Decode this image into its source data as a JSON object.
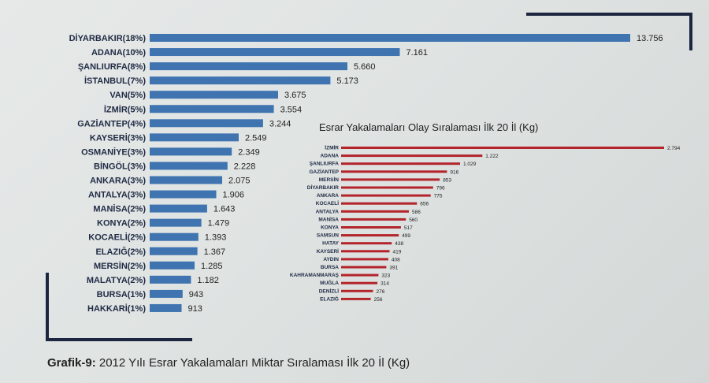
{
  "caption": {
    "prefix": "Grafik-9:",
    "text": "2012 Yılı Esrar Yakalamaları Miktar Sıralaması İlk 20 İl (Kg)"
  },
  "chart_data": [
    {
      "type": "bar",
      "orientation": "horizontal",
      "title": "",
      "bar_color": "#3f74b0",
      "categories": [
        "DİYARBAKIR(18%)",
        "ADANA(10%)",
        "ŞANLIURFA(8%)",
        "İSTANBUL(7%)",
        "VAN(5%)",
        "İZMİR(5%)",
        "GAZİANTEP(4%)",
        "KAYSERİ(3%)",
        "OSMANİYE(3%)",
        "BİNGÖL(3%)",
        "ANKARA(3%)",
        "ANTALYA(3%)",
        "MANİSA(2%)",
        "KONYA(2%)",
        "KOCAELİ(2%)",
        "ELAZIĞ(2%)",
        "MERSİN(2%)",
        "MALATYA(2%)",
        "BURSA(1%)",
        "HAKKARİ(1%)"
      ],
      "values": [
        13756,
        7161,
        5660,
        5173,
        3675,
        3554,
        3244,
        2549,
        2349,
        2228,
        2075,
        1906,
        1643,
        1479,
        1393,
        1367,
        1285,
        1182,
        943,
        913
      ],
      "value_labels": [
        "13.756",
        "7.161",
        "5.660",
        "5.173",
        "3.675",
        "3.554",
        "3.244",
        "2.549",
        "2.349",
        "2.228",
        "2.075",
        "1.906",
        "1.643",
        "1.479",
        "1.393",
        "1.367",
        "1.285",
        "1.182",
        "943",
        "913"
      ]
    },
    {
      "type": "bar",
      "orientation": "horizontal",
      "title": "Esrar Yakalamaları Olay Sıralaması İlk 20 İl (Kg)",
      "bar_color": "#b3242b",
      "categories": [
        "İZMİR",
        "ADANA",
        "ŞANLIURFA",
        "GAZİANTEP",
        "MERSİN",
        "DİYARBAKIR",
        "ANKARA",
        "KOCAELİ",
        "ANTALYA",
        "MANİSA",
        "KONYA",
        "SAMSUN",
        "HATAY",
        "KAYSERİ",
        "AYDIN",
        "BURSA",
        "KAHRAMANMARAŞ",
        "MUĞLA",
        "DENİZLİ",
        "ELAZIĞ"
      ],
      "values": [
        2794,
        1222,
        1029,
        916,
        853,
        796,
        775,
        656,
        586,
        560,
        517,
        499,
        438,
        419,
        408,
        391,
        323,
        314,
        276,
        256
      ],
      "value_labels": [
        "2.794",
        "1.222",
        "1.029",
        "916",
        "853",
        "796",
        "775",
        "656",
        "586",
        "560",
        "517",
        "499",
        "438",
        "419",
        "408",
        "391",
        "323",
        "314",
        "276",
        "256"
      ]
    }
  ]
}
